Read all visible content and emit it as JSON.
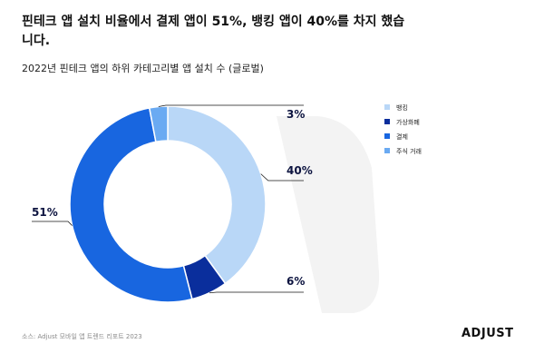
{
  "header": {
    "title": "핀테크 앱 설치 비율에서 결제 앱이 51%, 뱅킹 앱이 40%를 차지 했습니다.",
    "subtitle": "2022년 핀테크 앱의 하위 카테고리별 앱 설치 수 (글로벌)"
  },
  "footer": {
    "source": "소스: Adjust 모바일 앱 트렌드 리포트 2023",
    "logo": "ADJUST"
  },
  "colors": {
    "background_watermark": "#f3f3f3",
    "leader_line": "#1a1a1a",
    "label_text": "#0d1440"
  },
  "chart_data": {
    "type": "pie",
    "donut": true,
    "title": "2022년 핀테크 앱의 하위 카테고리별 앱 설치 수 (글로벌)",
    "legend_position": "top-right",
    "slices": [
      {
        "name": "뱅킹",
        "value": 40,
        "label": "40%",
        "color": "#b9d7f7"
      },
      {
        "name": "가상화폐",
        "value": 6,
        "label": "6%",
        "color": "#0a2e9c"
      },
      {
        "name": "결제",
        "value": 51,
        "label": "51%",
        "color": "#1866e0"
      },
      {
        "name": "주식 거래",
        "value": 3,
        "label": "3%",
        "color": "#6aaaf2"
      }
    ]
  }
}
